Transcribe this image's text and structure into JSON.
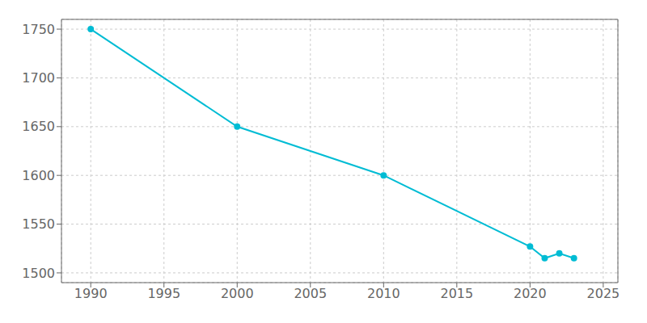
{
  "chart_data": {
    "type": "line",
    "x": [
      1990,
      2000,
      2010,
      2020,
      2021,
      2022,
      2023
    ],
    "values": [
      1750,
      1650,
      1600,
      1527,
      1515,
      1520,
      1515
    ],
    "color": "#00BCD4",
    "marker": "circle",
    "xlim": [
      1988,
      2026
    ],
    "ylim": [
      1490,
      1760
    ],
    "xticks": [
      1990,
      1995,
      2000,
      2005,
      2010,
      2015,
      2020,
      2025
    ],
    "yticks": [
      1500,
      1550,
      1600,
      1650,
      1700,
      1750
    ],
    "grid": true
  }
}
